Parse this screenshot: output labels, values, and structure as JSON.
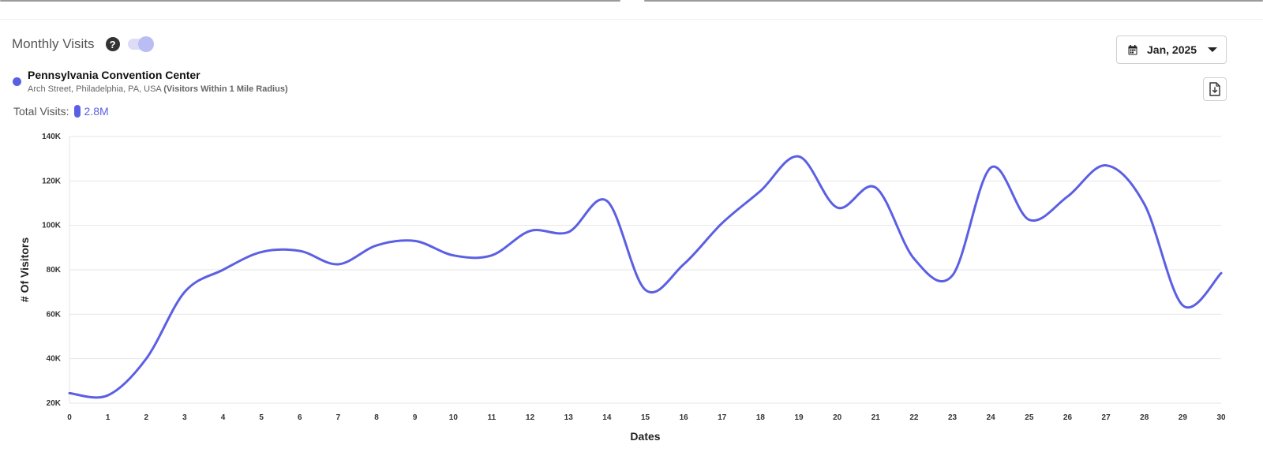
{
  "header": {
    "title": "Monthly Visits",
    "help_icon": "question-circle-icon",
    "toggle_on": true
  },
  "location": {
    "name": "Pennsylvania Convention Center",
    "address": "Arch Street, Philadelphia, PA, USA",
    "radius_note": "(Visitors Within 1 Mile Radius)",
    "color": "#5b5fe3"
  },
  "totals": {
    "label": "Total Visits:",
    "value": "2.8M"
  },
  "date_picker": {
    "label": "Jan, 2025",
    "icon": "calendar-icon",
    "caret": "caret-down-icon"
  },
  "download": {
    "icon": "file-download-icon"
  },
  "chart_data": {
    "type": "line",
    "xlabel": "Dates",
    "ylabel": "# Of Visitors",
    "ylim": [
      20000,
      140000
    ],
    "xlim": [
      0,
      30
    ],
    "y_ticks": [
      "20K",
      "40K",
      "60K",
      "80K",
      "100K",
      "120K",
      "140K"
    ],
    "x_ticks": [
      "0",
      "1",
      "2",
      "3",
      "4",
      "5",
      "6",
      "7",
      "8",
      "9",
      "10",
      "11",
      "12",
      "13",
      "14",
      "15",
      "16",
      "17",
      "18",
      "19",
      "20",
      "21",
      "22",
      "23",
      "24",
      "25",
      "26",
      "27",
      "28",
      "29",
      "30"
    ],
    "grid": true,
    "series": [
      {
        "color": "#5b5fe3",
        "x": [
          0,
          1,
          2,
          3,
          4,
          5,
          6,
          7,
          8,
          9,
          10,
          11,
          12,
          13,
          14,
          15,
          16,
          17,
          18,
          19,
          20,
          21,
          22,
          23,
          24,
          25,
          26,
          27,
          28,
          29,
          30
        ],
        "values": [
          24500,
          23500,
          40000,
          70000,
          80000,
          88000,
          88500,
          82500,
          91000,
          93000,
          86500,
          86500,
          97500,
          97000,
          111000,
          71000,
          82500,
          101000,
          115500,
          131000,
          108000,
          117000,
          85000,
          77500,
          126000,
          102500,
          113000,
          127000,
          109500,
          64000,
          78500
        ]
      }
    ]
  }
}
